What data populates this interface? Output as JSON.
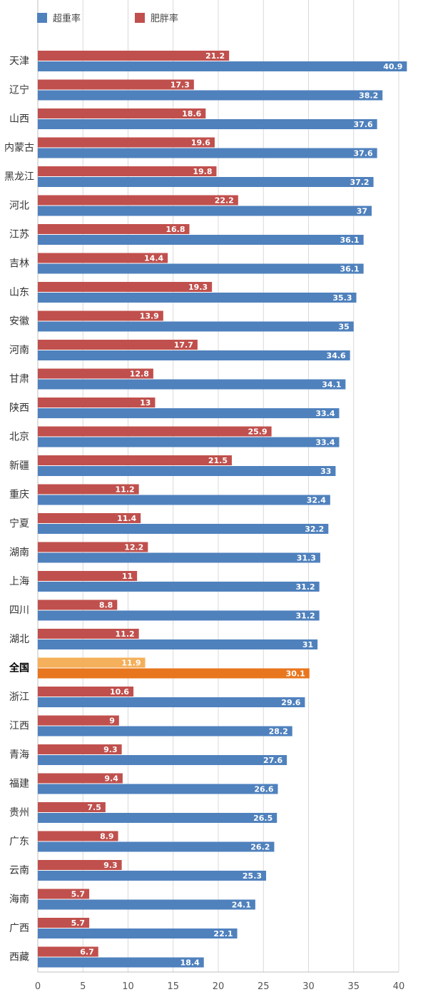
{
  "chart_data": {
    "type": "bar",
    "orientation": "horizontal",
    "categories": [
      "天津",
      "辽宁",
      "山西",
      "内蒙古",
      "黑龙江",
      "河北",
      "江苏",
      "吉林",
      "山东",
      "安徽",
      "河南",
      "甘肃",
      "陕西",
      "北京",
      "新疆",
      "重庆",
      "宁夏",
      "湖南",
      "上海",
      "四川",
      "湖北",
      "全国",
      "浙江",
      "江西",
      "青海",
      "福建",
      "贵州",
      "广东",
      "云南",
      "海南",
      "广西",
      "西藏"
    ],
    "series": [
      {
        "name": "肥胖率",
        "color": "#c0504d",
        "values": [
          21.2,
          17.3,
          18.6,
          19.6,
          19.8,
          22.2,
          16.8,
          14.4,
          19.3,
          13.9,
          17.7,
          12.8,
          13,
          25.9,
          21.5,
          11.2,
          11.4,
          12.2,
          11,
          8.8,
          11.2,
          11.9,
          10.6,
          9,
          9.3,
          9.4,
          7.5,
          8.9,
          9.3,
          5.7,
          5.7,
          6.7
        ],
        "labels": [
          "21.2",
          "17.3",
          "18.6",
          "19.6",
          "19.8",
          "22.2",
          "16.8",
          "14.4",
          "19.3",
          "13.9",
          "17.7",
          "12.8",
          "13",
          "25.9",
          "21.5",
          "11.2",
          "11.4",
          "12.2",
          "11",
          "8.8",
          "11.2",
          "11.9",
          "10.6",
          "9",
          "9.3",
          "9.4",
          "7.5",
          "8.9",
          "9.3",
          "5.7",
          "5.7",
          "6.7"
        ]
      },
      {
        "name": "超重率",
        "color": "#4f81bd",
        "values": [
          40.9,
          38.2,
          37.6,
          37.6,
          37.2,
          37,
          36.1,
          36.1,
          35.3,
          35,
          34.6,
          34.1,
          33.4,
          33.4,
          33,
          32.4,
          32.2,
          31.3,
          31.2,
          31.2,
          31,
          30.1,
          29.6,
          28.2,
          27.6,
          26.6,
          26.5,
          26.2,
          25.3,
          24.1,
          22.1,
          18.4
        ],
        "labels": [
          "40.9",
          "38.2",
          "37.6",
          "37.6",
          "37.2",
          "37",
          "36.1",
          "36.1",
          "35.3",
          "35",
          "34.6",
          "34.1",
          "33.4",
          "33.4",
          "33",
          "32.4",
          "32.2",
          "31.3",
          "31.2",
          "31.2",
          "31",
          "30.1",
          "29.6",
          "28.2",
          "27.6",
          "26.6",
          "26.5",
          "26.2",
          "25.3",
          "24.1",
          "22.1",
          "18.4"
        ]
      }
    ],
    "highlight": {
      "category": "全国",
      "color_light": "#f4b05a",
      "color_dark": "#e8761e"
    },
    "legend": {
      "placement": "top-left",
      "entries": [
        "超重率",
        "肥胖率"
      ]
    },
    "xlim": [
      0,
      40
    ],
    "xticks": [
      "0",
      "5",
      "10",
      "15",
      "20",
      "25",
      "30",
      "35",
      "40"
    ],
    "grid": true,
    "title": "",
    "xlabel": "",
    "ylabel": ""
  }
}
